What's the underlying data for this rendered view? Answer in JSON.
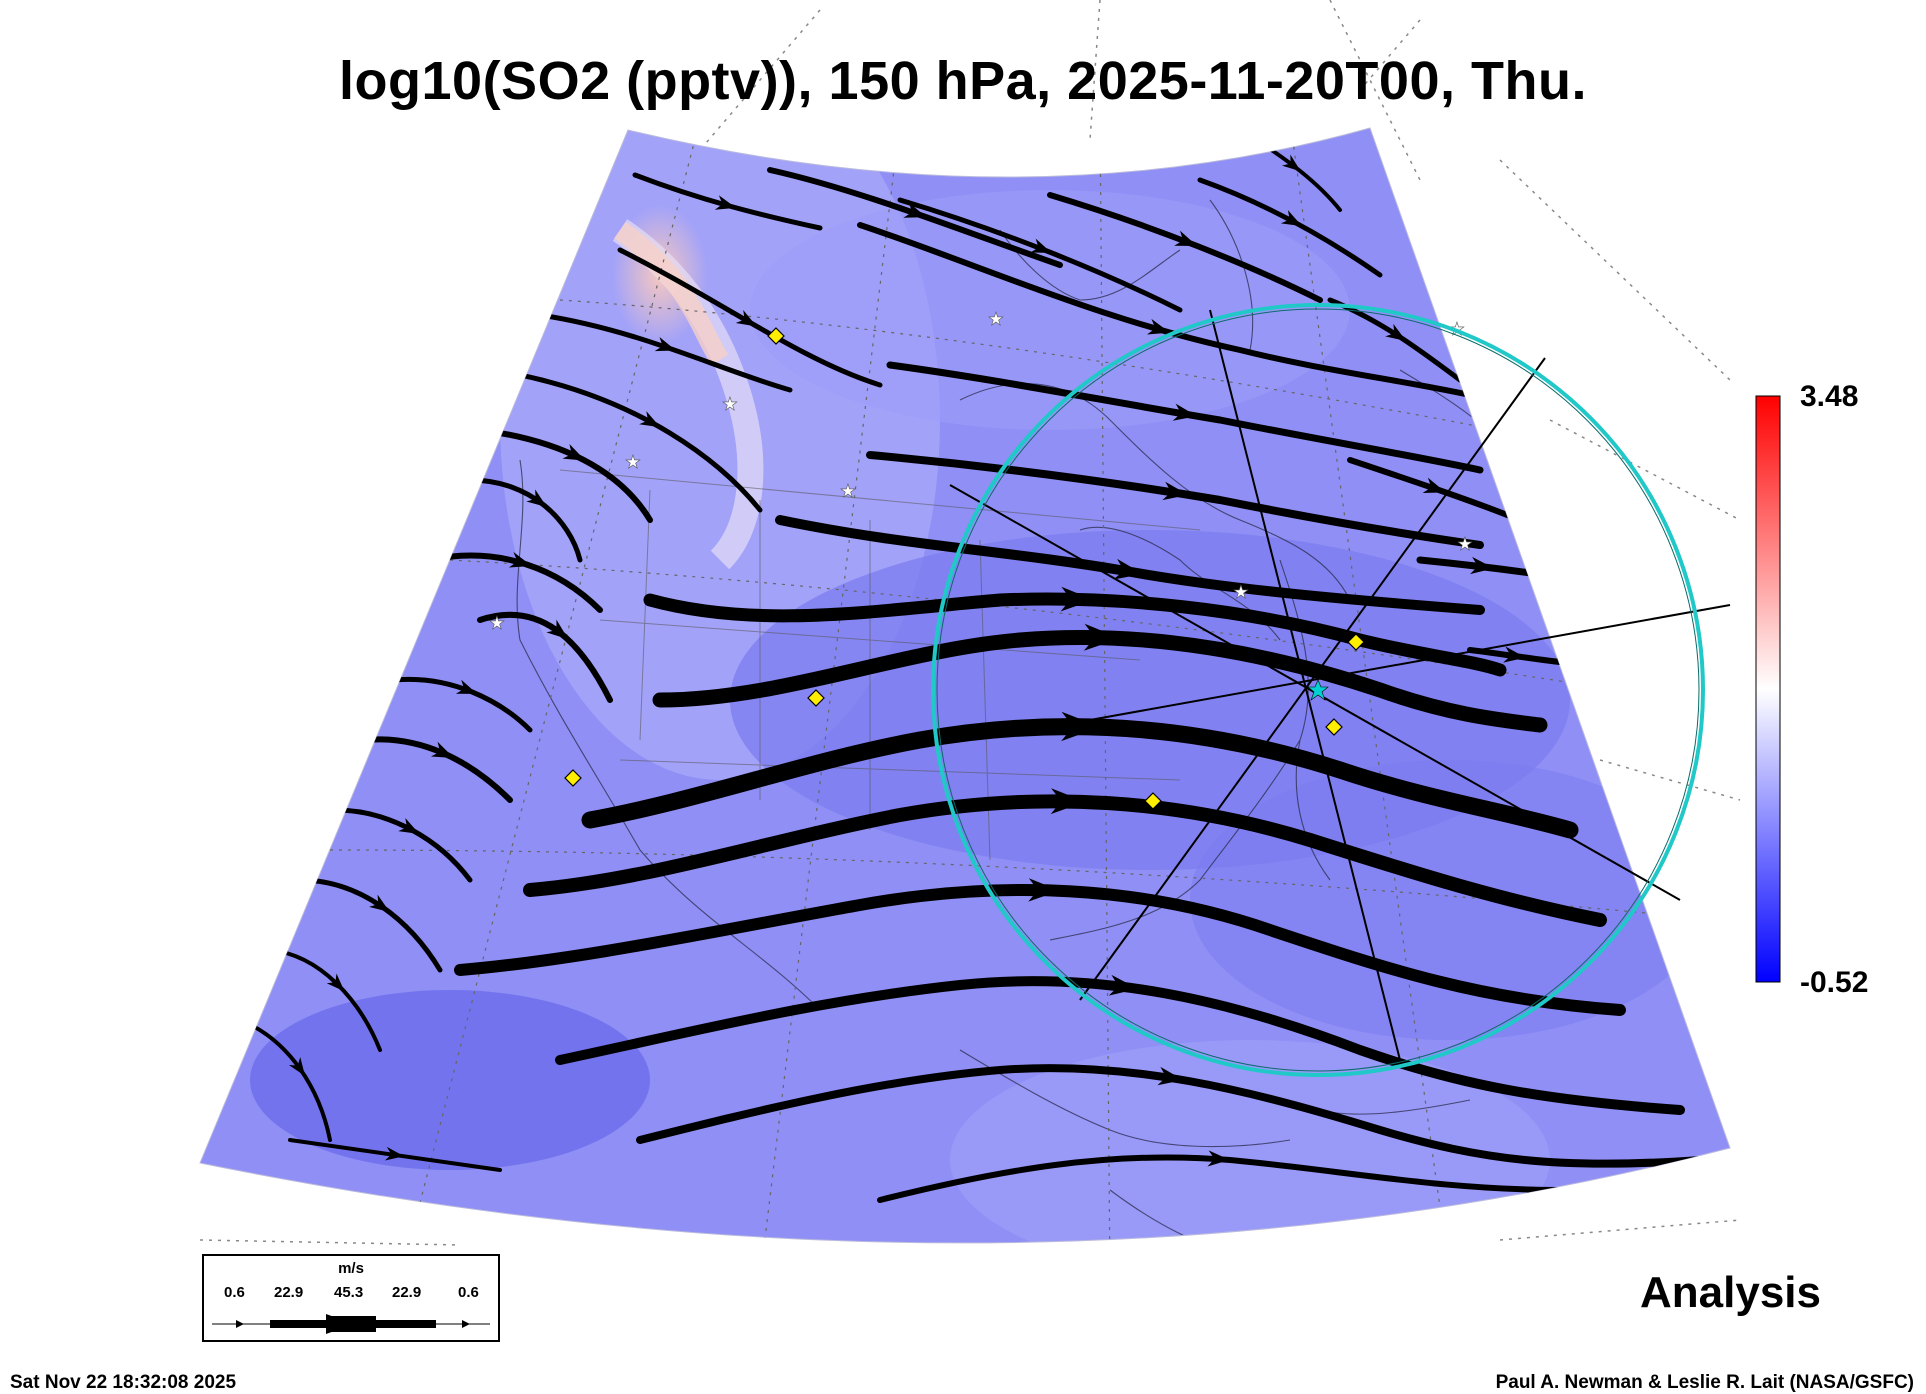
{
  "title": "log10(SO2 (pptv)), 150 hPa, 2025-11-20T00, Thu.",
  "colorbar": {
    "max_label": "3.48",
    "min_label": "-0.52",
    "max_value": 3.48,
    "min_value": -0.52,
    "colors": {
      "high": "#ff0000",
      "mid": "#ffffff",
      "low": "#0000ff"
    }
  },
  "product_label": "Analysis",
  "timestamp": "Sat Nov 22 18:32:08 2025",
  "credit": "Paul A. Newman & Leslie R. Lait (NASA/GSFC)",
  "wind_scale": {
    "unit": "m/s",
    "values": [
      "0.6",
      "22.9",
      "45.3",
      "22.9",
      "0.6"
    ]
  },
  "map": {
    "field_color": "#8f8ff5",
    "streamline_color": "#000000",
    "ring_color": "#20c8c8",
    "marker_color": "#ffee00",
    "center_marker_color": "#00d0d0"
  }
}
